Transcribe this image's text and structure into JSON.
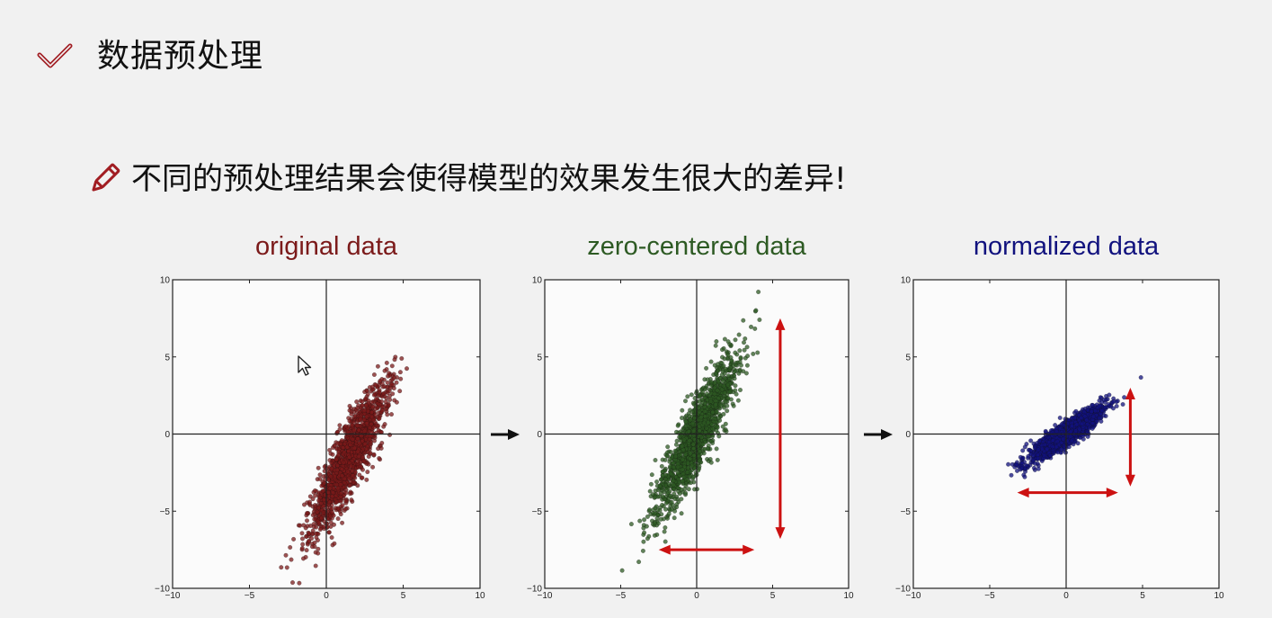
{
  "slide": {
    "title": "数据预处理",
    "subtitle": "不同的预处理结果会使得模型的效果发生很大的差异!",
    "icons": [
      "check-icon",
      "pencil-icon",
      "cursor-icon"
    ],
    "colors": {
      "check": "#a11d22",
      "pencil": "#a11d22",
      "original": "#7b1a1a",
      "zero_centered": "#2d5a23",
      "normalized": "#11127e",
      "arrow_red": "#cc1111"
    }
  },
  "chart_data": [
    {
      "type": "scatter",
      "title": "original data",
      "xlim": [
        -10,
        10
      ],
      "ylim": [
        -10,
        10
      ],
      "xticks": [
        "−10",
        "−5",
        "0",
        "5",
        "10"
      ],
      "yticks": [
        "10",
        "5",
        "0",
        "−5",
        "−10"
      ],
      "grid": false,
      "zero_lines": true,
      "point_color": "#7b1a1a",
      "distribution": {
        "n": 1500,
        "mean": [
          1.5,
          -1.5
        ],
        "spread": [
          2.8,
          0.55
        ],
        "angle_deg": 64
      }
    },
    {
      "type": "scatter",
      "title": "zero-centered data",
      "xlim": [
        -10,
        10
      ],
      "ylim": [
        -10,
        10
      ],
      "xticks": [
        "−10",
        "−5",
        "0",
        "5",
        "10"
      ],
      "yticks": [
        "10",
        "5",
        "0",
        "−5",
        "−10"
      ],
      "grid": false,
      "zero_lines": true,
      "point_color": "#2d5a23",
      "distribution": {
        "n": 1500,
        "mean": [
          0,
          0
        ],
        "spread": [
          2.8,
          0.55
        ],
        "angle_deg": 64
      },
      "annotations": {
        "vertical_arrow": {
          "x": 5.5,
          "y1": 7.5,
          "y2": -6.8
        },
        "horizontal_arrow": {
          "y": -7.5,
          "x1": -2.5,
          "x2": 3.8
        }
      }
    },
    {
      "type": "scatter",
      "title": "normalized data",
      "xlim": [
        -10,
        10
      ],
      "ylim": [
        -10,
        10
      ],
      "xticks": [
        "−10",
        "−5",
        "0",
        "5",
        "10"
      ],
      "yticks": [
        "10",
        "5",
        "0",
        "−5",
        "−10"
      ],
      "grid": false,
      "zero_lines": true,
      "point_color": "#11127e",
      "distribution": {
        "n": 1500,
        "mean": [
          0,
          0
        ],
        "spread": [
          1.5,
          0.32
        ],
        "angle_deg": 35
      },
      "annotations": {
        "vertical_arrow": {
          "x": 4.2,
          "y1": 3.0,
          "y2": -3.4
        },
        "horizontal_arrow": {
          "y": -3.8,
          "x1": -3.2,
          "x2": 3.4
        }
      }
    }
  ],
  "flow_arrows": {
    "count": 2,
    "color": "#111111"
  }
}
